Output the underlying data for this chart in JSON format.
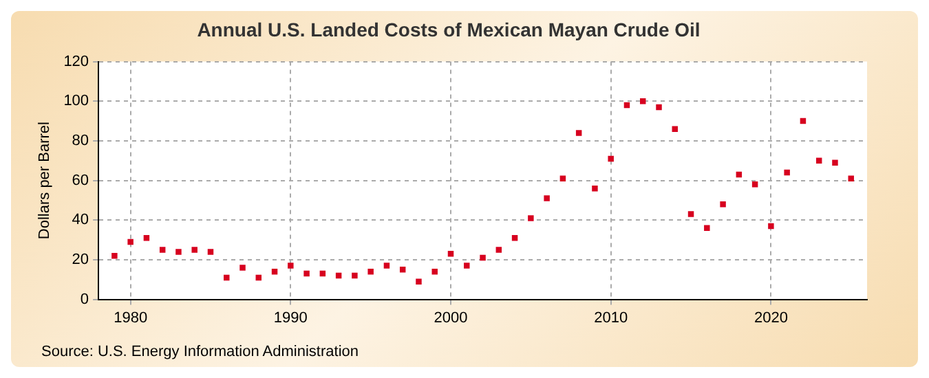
{
  "chart_data": {
    "type": "scatter",
    "title": "Annual U.S. Landed Costs of Mexican Mayan Crude Oil",
    "ylabel": "Dollars per Barrel",
    "annotations": [
      "Source: U.S. Energy Information Administration"
    ],
    "x": [
      1979,
      1980,
      1981,
      1982,
      1983,
      1984,
      1985,
      1986,
      1987,
      1988,
      1989,
      1990,
      1991,
      1992,
      1993,
      1994,
      1995,
      1996,
      1997,
      1998,
      1999,
      2000,
      2001,
      2002,
      2003,
      2004,
      2005,
      2006,
      2007,
      2008,
      2009,
      2010,
      2011,
      2012,
      2013,
      2014,
      2015,
      2016,
      2017,
      2018,
      2019,
      2020,
      2021,
      2022,
      2023,
      2024,
      2025
    ],
    "series": [
      {
        "color": "#d7001f",
        "values": [
          22,
          29,
          31,
          25,
          24,
          25,
          24,
          11,
          16,
          11,
          14,
          17,
          13,
          13,
          12,
          12,
          14,
          17,
          15,
          9,
          14,
          23,
          17,
          21,
          25,
          31,
          41,
          51,
          61,
          84,
          56,
          71,
          98,
          100,
          97,
          86,
          43,
          36,
          48,
          63,
          58,
          37,
          64,
          90,
          70,
          69,
          61
        ]
      }
    ],
    "xlim": [
      1978,
      2026
    ],
    "xticks": [
      1980,
      1990,
      2000,
      2010,
      2020
    ],
    "ylim": [
      0,
      120
    ],
    "yticks": [
      0,
      20,
      40,
      60,
      80,
      100,
      120
    ],
    "grid": true,
    "legend": false,
    "marker": "square"
  }
}
